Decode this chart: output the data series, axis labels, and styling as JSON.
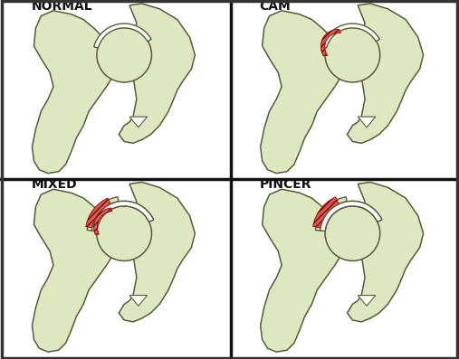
{
  "bg_color": "#ffffff",
  "bone_fill": "#dde8c0",
  "bone_edge": "#5a5a3a",
  "white_cartilage": "#ffffff",
  "red_impingement": "#d9534f",
  "red_hatch_color": "#8b0000",
  "title_fontsize": 10,
  "label_color": "#111111",
  "divider_color": "#111111",
  "outer_border_color": "#333333",
  "labels": [
    "NORMAL",
    "CAM",
    "MIXED",
    "PINCER"
  ]
}
